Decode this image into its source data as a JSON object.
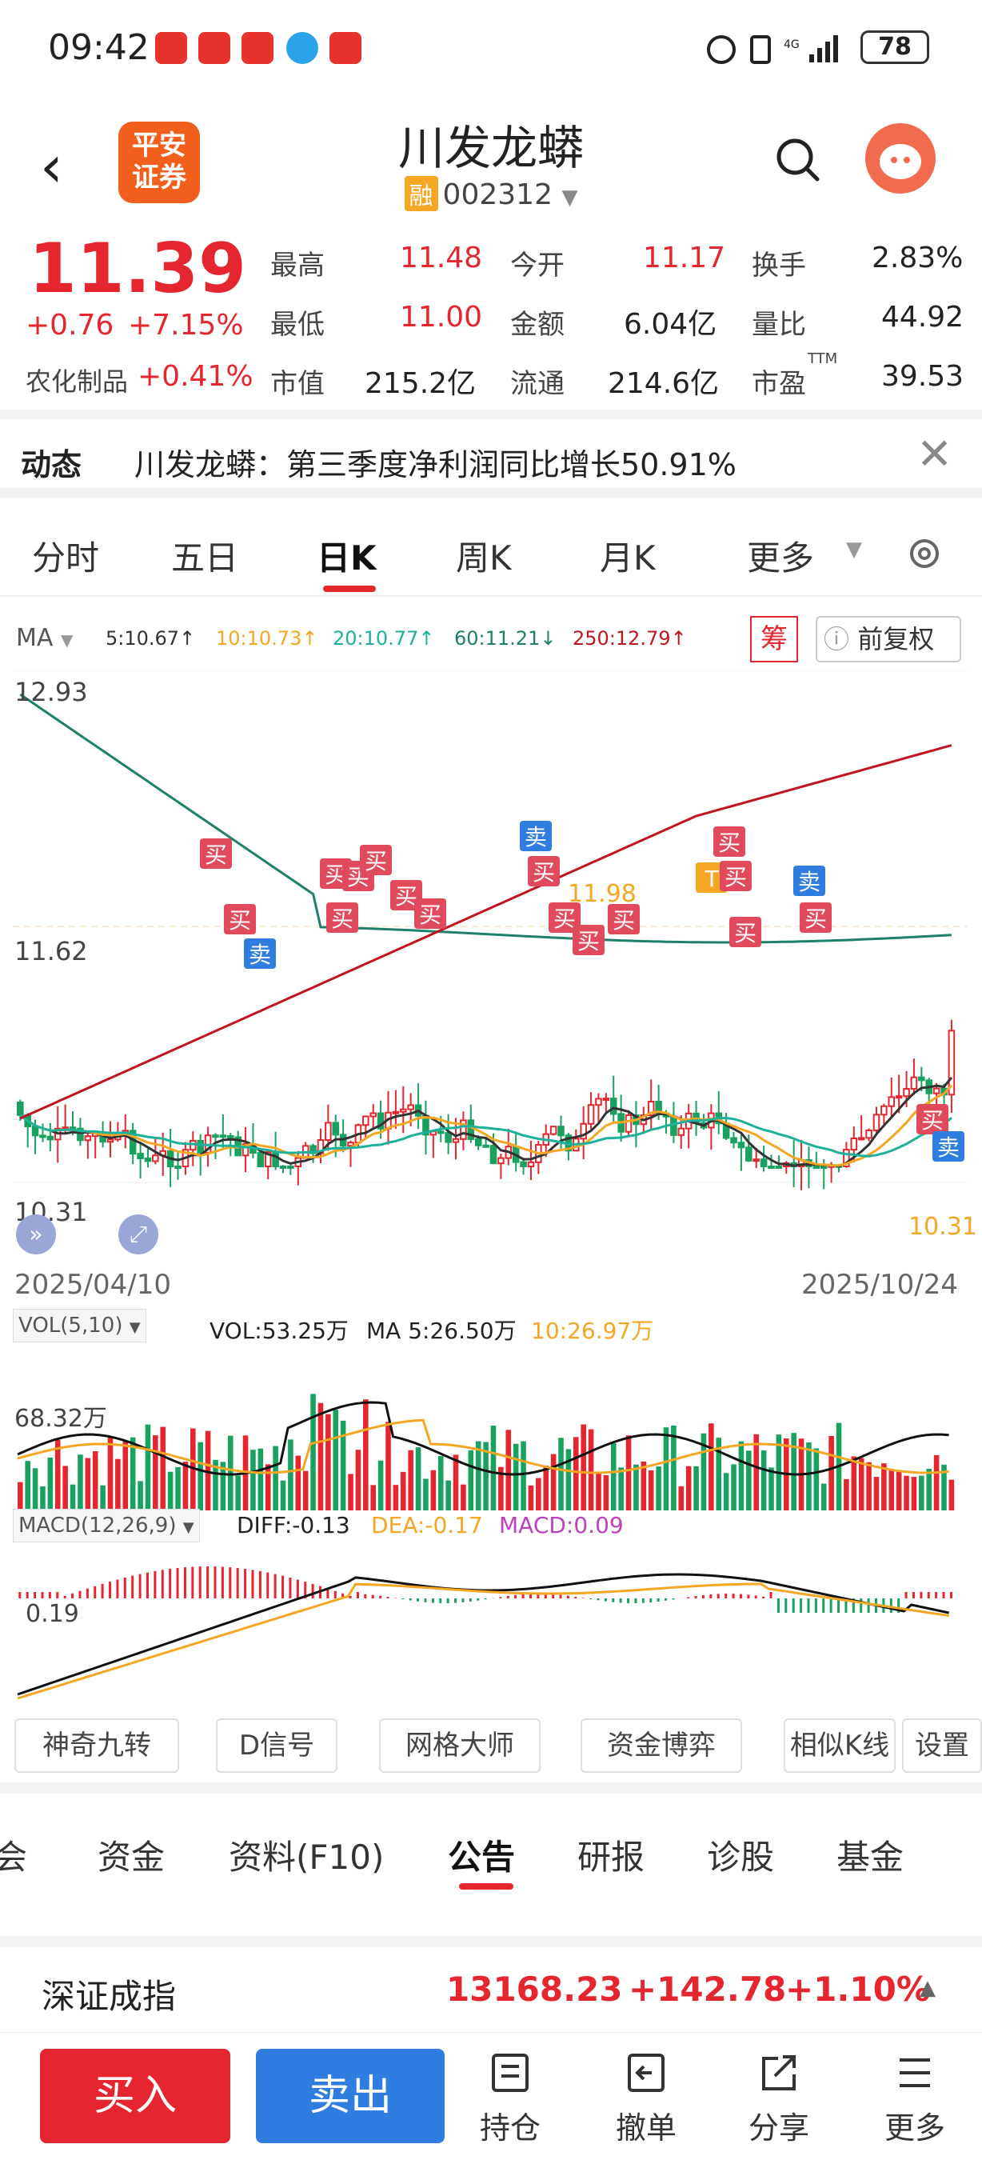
{
  "status": {
    "time": "09:42",
    "battery": "78"
  },
  "header": {
    "stock_name": "川发龙蟒",
    "margin_tag": "融",
    "code": "002312",
    "logo_text": "平安证券"
  },
  "quote": {
    "price": "11.39",
    "change": "+0.76",
    "change_pct": "+7.15%",
    "sector": "农化制品",
    "sector_pct": "+0.41%",
    "high_label": "最高",
    "high": "11.48",
    "open_label": "今开",
    "open": "11.17",
    "turnover_label": "换手",
    "turnover": "2.83%",
    "low_label": "最低",
    "low": "11.00",
    "amount_label": "金额",
    "amount": "6.04亿",
    "vr_label": "量比",
    "vr": "44.92",
    "mcap_label": "市值",
    "mcap": "215.2亿",
    "float_label": "流通",
    "float": "214.6亿",
    "pe_label": "市盈",
    "pe_sup": "TTM",
    "pe": "39.53"
  },
  "news": {
    "label": "动态",
    "text": "川发龙蟒：第三季度净利润同比增长50.91%"
  },
  "tabs": [
    "分时",
    "五日",
    "日K",
    "周K",
    "月K",
    "更多"
  ],
  "active_tab": "日K",
  "ma_bar": {
    "label": "MA",
    "ma5": "5:10.67↑",
    "ma10": "10:10.73↑",
    "ma20": "20:10.77↑",
    "ma60": "60:11.21↓",
    "ma250": "250:12.79↑",
    "chip": "筹",
    "restore": "前复权"
  },
  "chart_labels": {
    "y_high": "12.93",
    "y_mid": "11.62",
    "y_low": "10.31",
    "date_start": "2025/04/10",
    "date_end": "2025/10/24",
    "peak_label": "11.98",
    "low_label": "10.31"
  },
  "vol_bar": {
    "selector": "VOL(5,10)",
    "vol": "VOL:53.25万",
    "ma5": "MA 5:26.50万",
    "ma10": "10:26.97万",
    "ylabel": "68.32万"
  },
  "macd_bar": {
    "selector": "MACD(12,26,9)",
    "diff": "DIFF:-0.13",
    "dea": "DEA:-0.17",
    "macd": "MACD:0.09",
    "ylabel": "0.19"
  },
  "tools": [
    "神奇九转",
    "D信号",
    "网格大师",
    "资金博弈",
    "相似K线",
    "设置"
  ],
  "bottom_tabs": [
    "会",
    "资金",
    "资料(F10)",
    "公告",
    "研报",
    "诊股",
    "基金"
  ],
  "active_bottom_tab": "公告",
  "index": {
    "name": "深证成指",
    "value": "13168.23",
    "change": "+142.78",
    "pct": "+1.10%"
  },
  "actions": {
    "buy": "买入",
    "sell": "卖出",
    "hold": "持仓",
    "cancel": "撤单",
    "share": "分享",
    "more": "更多"
  },
  "signals": {
    "buy": "买",
    "sell": "卖",
    "t": "T"
  },
  "colors": {
    "up": "#e6262e",
    "down": "#19a15f",
    "accent_blue": "#2f7de1",
    "ma5": "#333333",
    "ma10": "#f5a623",
    "ma20": "#1db19b",
    "ma60": "#1e7f6b",
    "ma250": "#c0141e",
    "macd": "#c040c0"
  }
}
